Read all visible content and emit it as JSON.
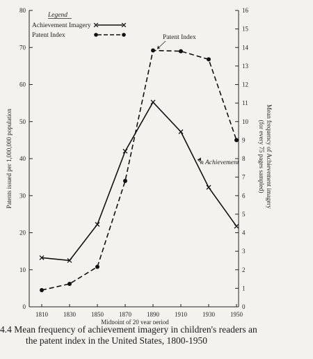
{
  "chart_data": {
    "type": "line",
    "x": [
      1810,
      1830,
      1850,
      1870,
      1890,
      1910,
      1930,
      1950
    ],
    "xlabel": "Midpoint of 20 year period",
    "left_ylabel": "Patents issued per 1,000,000 population",
    "right_ylabel_line1": "Mean frequency of Achievement imagery",
    "right_ylabel_line2": "(for every 75 pages sampled)",
    "left_ylim": [
      0,
      80
    ],
    "left_ticks": [
      0,
      10,
      20,
      30,
      40,
      50,
      60,
      70,
      80
    ],
    "right_ylim": [
      0,
      16
    ],
    "right_ticks": [
      0,
      1,
      2,
      3,
      4,
      5,
      6,
      7,
      8,
      9,
      10,
      11,
      12,
      13,
      14,
      15,
      16
    ],
    "legend": {
      "title": "Legend",
      "entries": [
        {
          "label": "Achievement Imagery",
          "marker": "x",
          "style": "solid"
        },
        {
          "label": "Patent Index",
          "marker": "dot",
          "style": "dashed"
        }
      ],
      "position": "top-left"
    },
    "series": [
      {
        "name": "Achievement Imagery",
        "axis": "right",
        "style": "solid",
        "marker": "x",
        "values": [
          2.65,
          2.5,
          4.45,
          8.4,
          11.05,
          9.45,
          6.45,
          4.35
        ]
      },
      {
        "name": "Patent Index",
        "axis": "left",
        "style": "dashed",
        "marker": "dot",
        "values": [
          4.5,
          6.2,
          10.8,
          34.0,
          69.2,
          69.0,
          66.8,
          45.0
        ]
      }
    ],
    "annotations": [
      {
        "text": "Patent Index",
        "series": 1,
        "at_x": 1890
      },
      {
        "text": "n Achievement",
        "series": 0,
        "at_x": 1920
      }
    ],
    "grid": false
  },
  "caption": {
    "line1": "4.4  Mean frequency of achievement imagery in children's readers an",
    "line2": "the patent index in the United States, 1800-1950"
  }
}
